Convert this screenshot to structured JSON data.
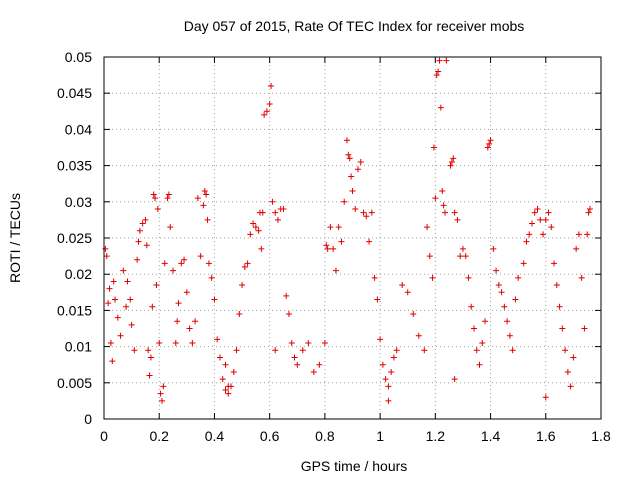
{
  "chart_data": {
    "type": "scatter",
    "title": "Day 057 of 2015, Rate Of TEC Index for receiver mobs",
    "xlabel": "GPS time / hours",
    "ylabel": "ROTI / TECUs",
    "xlim": [
      0,
      1.8
    ],
    "ylim": [
      0,
      0.05
    ],
    "x_ticks": [
      "0",
      "0.2",
      "0.4",
      "0.6",
      "0.8",
      "1",
      "1.2",
      "1.4",
      "1.6",
      "1.8"
    ],
    "y_ticks": [
      "0",
      "0.005",
      "0.01",
      "0.015",
      "0.02",
      "0.025",
      "0.03",
      "0.035",
      "0.04",
      "0.045",
      "0.05"
    ],
    "grid": true,
    "marker": "+",
    "color": "#e00000",
    "series": [
      {
        "name": "ROTI",
        "points": [
          [
            0.005,
            0.0235
          ],
          [
            0.01,
            0.0225
          ],
          [
            0.015,
            0.016
          ],
          [
            0.02,
            0.018
          ],
          [
            0.025,
            0.0105
          ],
          [
            0.03,
            0.008
          ],
          [
            0.035,
            0.019
          ],
          [
            0.04,
            0.0165
          ],
          [
            0.05,
            0.014
          ],
          [
            0.06,
            0.0115
          ],
          [
            0.07,
            0.0205
          ],
          [
            0.08,
            0.0155
          ],
          [
            0.085,
            0.019
          ],
          [
            0.095,
            0.0165
          ],
          [
            0.1,
            0.013
          ],
          [
            0.11,
            0.0095
          ],
          [
            0.12,
            0.022
          ],
          [
            0.125,
            0.0245
          ],
          [
            0.13,
            0.026
          ],
          [
            0.14,
            0.027
          ],
          [
            0.15,
            0.0275
          ],
          [
            0.155,
            0.024
          ],
          [
            0.16,
            0.0095
          ],
          [
            0.165,
            0.006
          ],
          [
            0.17,
            0.0085
          ],
          [
            0.175,
            0.0155
          ],
          [
            0.18,
            0.031
          ],
          [
            0.185,
            0.0305
          ],
          [
            0.19,
            0.0185
          ],
          [
            0.195,
            0.029
          ],
          [
            0.2,
            0.0105
          ],
          [
            0.205,
            0.0035
          ],
          [
            0.21,
            0.0025
          ],
          [
            0.215,
            0.0045
          ],
          [
            0.22,
            0.0215
          ],
          [
            0.23,
            0.0305
          ],
          [
            0.235,
            0.031
          ],
          [
            0.24,
            0.0265
          ],
          [
            0.25,
            0.0205
          ],
          [
            0.26,
            0.0105
          ],
          [
            0.265,
            0.0135
          ],
          [
            0.27,
            0.016
          ],
          [
            0.28,
            0.0215
          ],
          [
            0.29,
            0.022
          ],
          [
            0.3,
            0.0175
          ],
          [
            0.31,
            0.0125
          ],
          [
            0.32,
            0.0105
          ],
          [
            0.33,
            0.0135
          ],
          [
            0.34,
            0.0305
          ],
          [
            0.35,
            0.0225
          ],
          [
            0.36,
            0.0295
          ],
          [
            0.365,
            0.0315
          ],
          [
            0.37,
            0.031
          ],
          [
            0.375,
            0.0275
          ],
          [
            0.38,
            0.0215
          ],
          [
            0.39,
            0.0195
          ],
          [
            0.4,
            0.0165
          ],
          [
            0.41,
            0.011
          ],
          [
            0.42,
            0.0085
          ],
          [
            0.43,
            0.0055
          ],
          [
            0.44,
            0.004
          ],
          [
            0.45,
            0.0035
          ],
          [
            0.46,
            0.0045
          ],
          [
            0.47,
            0.0065
          ],
          [
            0.48,
            0.0095
          ],
          [
            0.49,
            0.0145
          ],
          [
            0.5,
            0.0185
          ],
          [
            0.51,
            0.021
          ],
          [
            0.52,
            0.0215
          ],
          [
            0.53,
            0.0255
          ],
          [
            0.54,
            0.027
          ],
          [
            0.55,
            0.0265
          ],
          [
            0.56,
            0.026
          ],
          [
            0.565,
            0.0285
          ],
          [
            0.57,
            0.0235
          ],
          [
            0.575,
            0.0285
          ],
          [
            0.58,
            0.042
          ],
          [
            0.59,
            0.0425
          ],
          [
            0.6,
            0.0435
          ],
          [
            0.605,
            0.046
          ],
          [
            0.61,
            0.03
          ],
          [
            0.62,
            0.0285
          ],
          [
            0.63,
            0.0275
          ],
          [
            0.64,
            0.029
          ],
          [
            0.65,
            0.029
          ],
          [
            0.66,
            0.017
          ],
          [
            0.67,
            0.0145
          ],
          [
            0.68,
            0.0105
          ],
          [
            0.69,
            0.0085
          ],
          [
            0.7,
            0.0075
          ],
          [
            0.72,
            0.0095
          ],
          [
            0.74,
            0.0105
          ],
          [
            0.76,
            0.0065
          ],
          [
            0.78,
            0.0075
          ],
          [
            0.8,
            0.0105
          ],
          [
            0.805,
            0.024
          ],
          [
            0.81,
            0.0235
          ],
          [
            0.82,
            0.0265
          ],
          [
            0.83,
            0.0235
          ],
          [
            0.84,
            0.0205
          ],
          [
            0.85,
            0.0265
          ],
          [
            0.86,
            0.0245
          ],
          [
            0.87,
            0.03
          ],
          [
            0.88,
            0.0385
          ],
          [
            0.885,
            0.0365
          ],
          [
            0.89,
            0.036
          ],
          [
            0.895,
            0.0335
          ],
          [
            0.9,
            0.0315
          ],
          [
            0.91,
            0.029
          ],
          [
            0.92,
            0.0345
          ],
          [
            0.93,
            0.0355
          ],
          [
            0.94,
            0.0285
          ],
          [
            0.95,
            0.028
          ],
          [
            0.96,
            0.0245
          ],
          [
            0.97,
            0.0285
          ],
          [
            0.98,
            0.0195
          ],
          [
            0.99,
            0.0165
          ],
          [
            1.0,
            0.011
          ],
          [
            1.01,
            0.0075
          ],
          [
            1.02,
            0.0055
          ],
          [
            1.03,
            0.0045
          ],
          [
            1.04,
            0.0065
          ],
          [
            1.05,
            0.0085
          ],
          [
            1.06,
            0.0095
          ],
          [
            1.08,
            0.0185
          ],
          [
            1.1,
            0.0175
          ],
          [
            1.12,
            0.0145
          ],
          [
            1.14,
            0.0115
          ],
          [
            1.16,
            0.0095
          ],
          [
            1.17,
            0.0265
          ],
          [
            1.18,
            0.0225
          ],
          [
            1.19,
            0.0195
          ],
          [
            1.195,
            0.0375
          ],
          [
            1.2,
            0.0305
          ],
          [
            1.205,
            0.0475
          ],
          [
            1.21,
            0.048
          ],
          [
            1.215,
            0.0495
          ],
          [
            1.22,
            0.043
          ],
          [
            1.225,
            0.0315
          ],
          [
            1.23,
            0.0295
          ],
          [
            1.235,
            0.0285
          ],
          [
            1.24,
            0.0495
          ],
          [
            1.25,
            0.0505
          ],
          [
            1.255,
            0.035
          ],
          [
            1.26,
            0.0355
          ],
          [
            1.265,
            0.036
          ],
          [
            1.27,
            0.0285
          ],
          [
            1.28,
            0.0275
          ],
          [
            1.29,
            0.0225
          ],
          [
            1.3,
            0.0235
          ],
          [
            1.31,
            0.0225
          ],
          [
            1.32,
            0.0195
          ],
          [
            1.33,
            0.0155
          ],
          [
            1.34,
            0.0125
          ],
          [
            1.35,
            0.0095
          ],
          [
            1.36,
            0.0075
          ],
          [
            1.37,
            0.0105
          ],
          [
            1.38,
            0.0135
          ],
          [
            1.39,
            0.0375
          ],
          [
            1.395,
            0.038
          ],
          [
            1.4,
            0.0385
          ],
          [
            1.41,
            0.0235
          ],
          [
            1.42,
            0.0205
          ],
          [
            1.43,
            0.0185
          ],
          [
            1.44,
            0.0175
          ],
          [
            1.45,
            0.0155
          ],
          [
            1.46,
            0.0135
          ],
          [
            1.47,
            0.0115
          ],
          [
            1.48,
            0.0095
          ],
          [
            1.49,
            0.0165
          ],
          [
            1.5,
            0.0195
          ],
          [
            1.52,
            0.0215
          ],
          [
            1.53,
            0.0245
          ],
          [
            1.54,
            0.0255
          ],
          [
            1.55,
            0.027
          ],
          [
            1.56,
            0.0285
          ],
          [
            1.57,
            0.029
          ],
          [
            1.58,
            0.0275
          ],
          [
            1.59,
            0.0255
          ],
          [
            1.6,
            0.0275
          ],
          [
            1.61,
            0.0285
          ],
          [
            1.62,
            0.0265
          ],
          [
            1.63,
            0.0215
          ],
          [
            1.64,
            0.0185
          ],
          [
            1.65,
            0.0155
          ],
          [
            1.66,
            0.0125
          ],
          [
            1.67,
            0.0095
          ],
          [
            1.68,
            0.0065
          ],
          [
            1.69,
            0.0045
          ],
          [
            1.7,
            0.0085
          ],
          [
            1.71,
            0.0235
          ],
          [
            1.72,
            0.0255
          ],
          [
            1.73,
            0.0195
          ],
          [
            1.74,
            0.0125
          ],
          [
            1.75,
            0.0255
          ],
          [
            1.755,
            0.0285
          ],
          [
            1.76,
            0.029
          ],
          [
            1.03,
            0.0025
          ],
          [
            0.45,
            0.0045
          ],
          [
            0.62,
            0.0095
          ],
          [
            1.27,
            0.0055
          ],
          [
            1.6,
            0.003
          ],
          [
            0.44,
            0.0075
          ]
        ]
      }
    ]
  }
}
